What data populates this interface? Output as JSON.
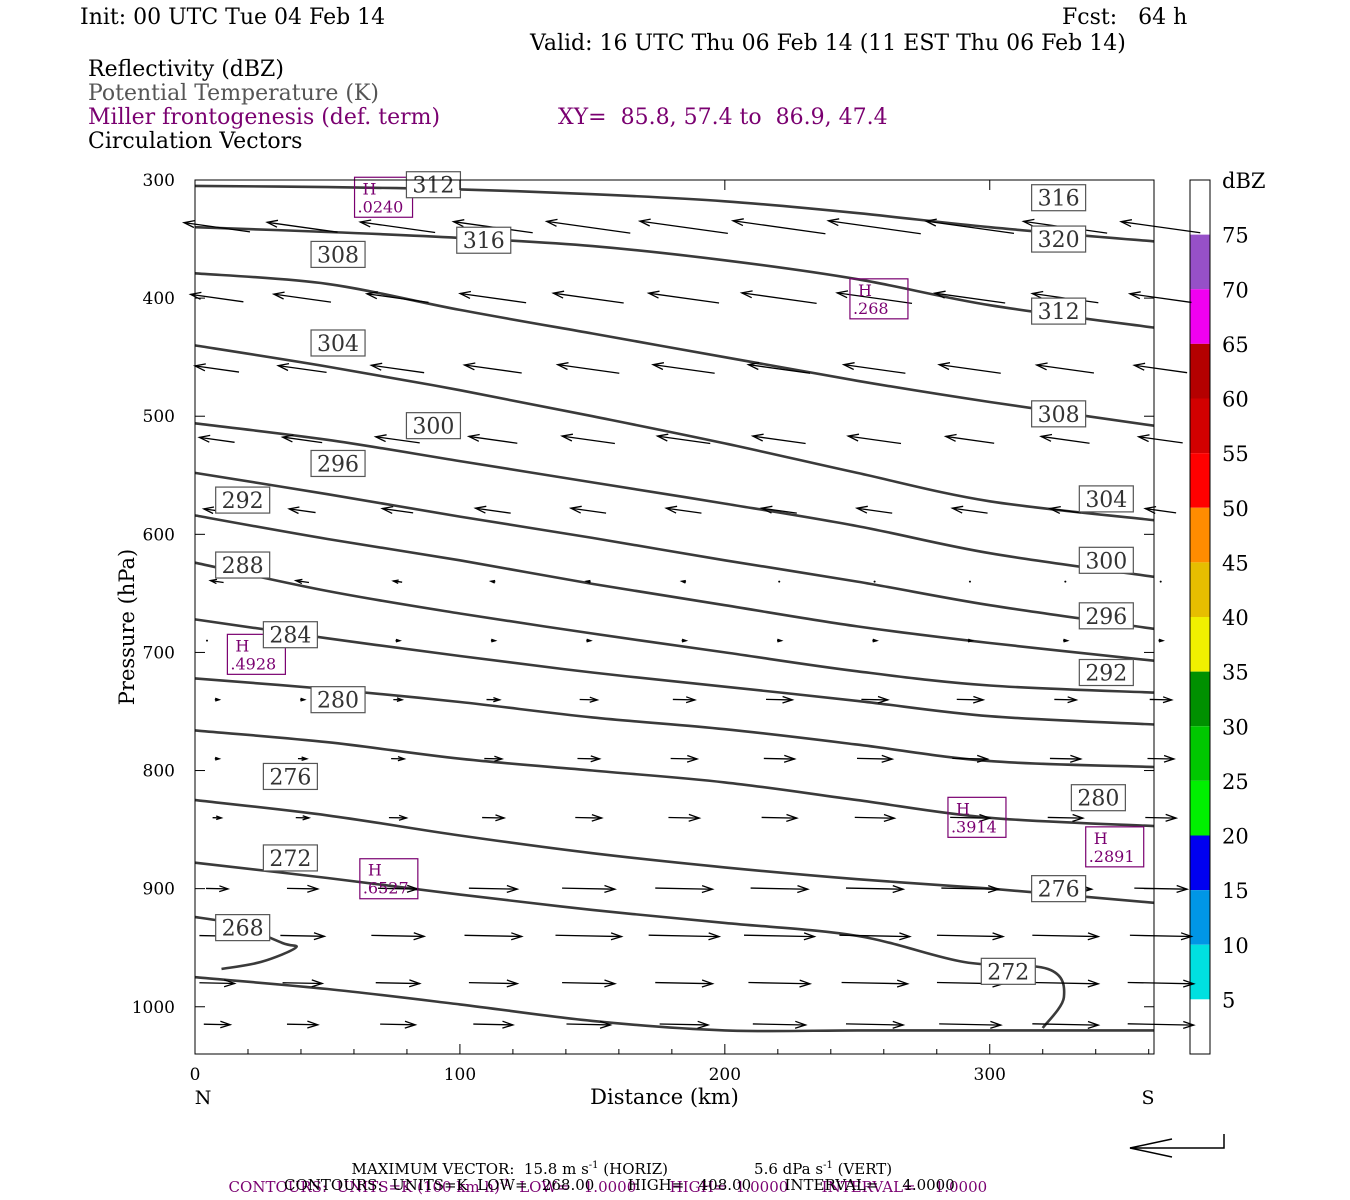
{
  "header": {
    "init": "Init: 00 UTC Tue 04 Feb 14",
    "fcst": "Fcst:   64 h",
    "valid": "Valid: 16 UTC Thu 06 Feb 14 (11 EST Thu 06 Feb 14)"
  },
  "legend": {
    "line1": "Reflectivity (dBZ)",
    "line2": "Potential Temperature (K)",
    "line3": "Miller frontogenesis (def. term)",
    "xy": "XY=  85.8, 57.4 to  86.9, 47.4",
    "line4": "Circulation Vectors"
  },
  "footer": {
    "maxvec": "MAXIMUM VECTOR:  15.8 m s",
    "maxvec_h": " (HORIZ)",
    "maxvec_v": "5.6 dPa s",
    "maxvec_v2": " (VERT)",
    "sup": "-1",
    "contour_purple_a": "CONTOURS:  UNITS=K (100 km h)",
    "contour_purple_b": "  LOW=   1.0000       HIGH=  1.0000       INTERVAL=    1.0000",
    "contour_black": "CONTOURS:  UNITS=K  LOW=   268.00       HIGH=   408.00       INTERVAL=     4.0000"
  },
  "colors": {
    "theta": "#3a3a3a",
    "frontogenesis": "#7a0070",
    "vectors": "#000000"
  },
  "chart_data": {
    "type": "cross-section",
    "xlabel": "Distance (km)",
    "ylabel": "Pressure (hPa)",
    "x_end_labels": [
      "N",
      "S"
    ],
    "xlim": [
      0,
      362
    ],
    "ylim": [
      1040,
      300
    ],
    "xticks": [
      0,
      100,
      200,
      300
    ],
    "yticks": [
      300,
      400,
      500,
      600,
      700,
      800,
      900,
      1000
    ],
    "colorbar": {
      "title": "dBZ",
      "labels": [
        5,
        10,
        15,
        20,
        25,
        30,
        35,
        40,
        45,
        50,
        55,
        60,
        65,
        70,
        75
      ],
      "colors": [
        "#ffffff",
        "#00e0e0",
        "#0096e6",
        "#0000f0",
        "#00f000",
        "#00c800",
        "#009000",
        "#f0f000",
        "#e6be00",
        "#ff8c00",
        "#ff0000",
        "#d20000",
        "#b40000",
        "#f000f0",
        "#9650c8",
        "#ffffff"
      ]
    },
    "theta_contours": [
      {
        "label": "268",
        "x": [
          0,
          15,
          33,
          38,
          25,
          10
        ],
        "p": [
          924,
          930,
          946,
          950,
          962,
          968
        ],
        "labels_at": [
          [
            18,
            933
          ]
        ]
      },
      {
        "label": "272",
        "x": [
          0,
          50,
          100,
          150,
          200,
          250,
          290,
          322,
          328,
          320
        ],
        "p": [
          878,
          891,
          905,
          918,
          929,
          940,
          962,
          968,
          992,
          1018
        ],
        "labels_at": [
          [
            36,
            874
          ],
          [
            307,
            970
          ]
        ]
      },
      {
        "label": "276",
        "x": [
          0,
          50,
          100,
          150,
          200,
          250,
          300,
          362
        ],
        "p": [
          825,
          838,
          855,
          870,
          882,
          892,
          900,
          912
        ],
        "labels_at": [
          [
            36,
            805
          ],
          [
            326,
            900
          ]
        ]
      },
      {
        "label": "280",
        "x": [
          0,
          50,
          100,
          150,
          200,
          250,
          300,
          362
        ],
        "p": [
          766,
          776,
          790,
          800,
          810,
          825,
          840,
          847
        ],
        "labels_at": [
          [
            54,
            740
          ],
          [
            341,
            823
          ]
        ]
      },
      {
        "label": "284",
        "x": [
          0,
          50,
          100,
          150,
          200,
          250,
          300,
          362
        ],
        "p": [
          722,
          731,
          742,
          755,
          765,
          778,
          792,
          797
        ],
        "labels_at": [
          [
            36,
            685
          ]
        ]
      },
      {
        "label": "288",
        "x": [
          0,
          50,
          100,
          150,
          200,
          250,
          300,
          362
        ],
        "p": [
          672,
          688,
          703,
          717,
          729,
          741,
          754,
          761
        ],
        "labels_at": [
          [
            18,
            626
          ]
        ]
      },
      {
        "label": "292",
        "x": [
          0,
          50,
          100,
          150,
          200,
          250,
          300,
          362
        ],
        "p": [
          624,
          648,
          667,
          684,
          700,
          716,
          728,
          734
        ],
        "labels_at": [
          [
            18,
            571
          ],
          [
            344,
            717
          ]
        ]
      },
      {
        "label": "296",
        "x": [
          0,
          50,
          100,
          150,
          200,
          250,
          300,
          362
        ],
        "p": [
          584,
          604,
          622,
          642,
          660,
          678,
          692,
          707
        ],
        "labels_at": [
          [
            54,
            540
          ],
          [
            344,
            669
          ]
        ]
      },
      {
        "label": "300",
        "x": [
          0,
          50,
          100,
          150,
          200,
          250,
          300,
          362
        ],
        "p": [
          548,
          566,
          585,
          603,
          622,
          640,
          660,
          680
        ],
        "labels_at": [
          [
            90,
            508
          ],
          [
            344,
            622
          ]
        ]
      },
      {
        "label": "304",
        "x": [
          0,
          50,
          100,
          150,
          200,
          250,
          300,
          362
        ],
        "p": [
          506,
          520,
          538,
          556,
          574,
          593,
          616,
          636
        ],
        "labels_at": [
          [
            54,
            438
          ],
          [
            344,
            570
          ]
        ]
      },
      {
        "label": "308",
        "x": [
          0,
          50,
          100,
          150,
          200,
          250,
          300,
          362
        ],
        "p": [
          440,
          458,
          478,
          500,
          523,
          548,
          572,
          588
        ],
        "labels_at": [
          [
            54,
            363
          ],
          [
            326,
            498
          ]
        ]
      },
      {
        "label": "312",
        "x": [
          0,
          50,
          100,
          150,
          200,
          250,
          300,
          362
        ],
        "p": [
          379,
          388,
          410,
          430,
          450,
          470,
          488,
          508
        ],
        "labels_at": [
          [
            90,
            304
          ],
          [
            326,
            411
          ]
        ]
      },
      {
        "label": "316",
        "x": [
          0,
          50,
          100,
          150,
          200,
          250,
          300,
          362
        ],
        "p": [
          340,
          344,
          349,
          356,
          368,
          384,
          406,
          425
        ],
        "labels_at": [
          [
            109,
            351
          ],
          [
            326,
            315
          ]
        ]
      },
      {
        "label": "320",
        "x": [
          0,
          50,
          100,
          150,
          200,
          250,
          300,
          362
        ],
        "p": [
          305,
          306,
          308,
          312,
          318,
          328,
          340,
          352
        ],
        "labels_at": [
          [
            326,
            350
          ]
        ]
      }
    ],
    "surface_line": {
      "x": [
        0,
        50,
        100,
        150,
        200,
        250,
        300,
        362
      ],
      "p": [
        975,
        985,
        998,
        1012,
        1020,
        1020,
        1020,
        1020
      ]
    },
    "frontogenesis_maxima": [
      {
        "label": "H",
        "value": ".0240",
        "x": 64,
        "p": 318
      },
      {
        "label": "H",
        "value": ".268",
        "x": 251,
        "p": 404
      },
      {
        "label": "H",
        "value": ".4928",
        "x": 16,
        "p": 705
      },
      {
        "label": "H",
        "value": ".3914",
        "x": 288,
        "p": 843
      },
      {
        "label": "H",
        "value": ".6527",
        "x": 66,
        "p": 895
      },
      {
        "label": "H",
        "value": ".2891",
        "x": 340,
        "p": 868
      }
    ],
    "vectors": {
      "x": [
        0,
        36,
        72,
        108,
        144,
        180,
        216,
        252,
        288,
        324,
        360
      ],
      "p": [
        340,
        400,
        460,
        520,
        580,
        640,
        690,
        740,
        790,
        840,
        900,
        940,
        980,
        1015
      ],
      "u_by_row": [
        [
          -15,
          -16,
          -17,
          -18,
          -19,
          -20,
          -21,
          -21,
          -20,
          -19,
          -18
        ],
        [
          -12,
          -13,
          -14,
          -15,
          -16,
          -16,
          -17,
          -17,
          -16,
          -15,
          -14
        ],
        [
          -10,
          -11,
          -12,
          -13,
          -14,
          -14,
          -14,
          -14,
          -14,
          -13,
          -12
        ],
        [
          -8,
          -9,
          -10,
          -11,
          -12,
          -12,
          -12,
          -12,
          -11,
          -11,
          -10
        ],
        [
          -6,
          -6,
          -7,
          -8,
          -8,
          -8,
          -8,
          -8,
          -8,
          -7,
          -7
        ],
        [
          -3,
          -3,
          -2,
          -1,
          -1,
          -1,
          0,
          0,
          0,
          0,
          0
        ],
        [
          0,
          1,
          1,
          1,
          1,
          1,
          1,
          1,
          1,
          1,
          1
        ],
        [
          1,
          1,
          2,
          3,
          4,
          5,
          6,
          6,
          6,
          5,
          5
        ],
        [
          1,
          2,
          3,
          4,
          5,
          6,
          7,
          8,
          8,
          7,
          6
        ],
        [
          2,
          3,
          4,
          5,
          6,
          7,
          8,
          9,
          9,
          8,
          7
        ],
        [
          5,
          7,
          9,
          11,
          12,
          13,
          13,
          13,
          13,
          12,
          12
        ],
        [
          8,
          10,
          12,
          13,
          15,
          16,
          16,
          16,
          15,
          15,
          14
        ],
        [
          8,
          9,
          10,
          11,
          12,
          13,
          14,
          15,
          15,
          15,
          15
        ],
        [
          6,
          7,
          8,
          9,
          10,
          11,
          12,
          13,
          14,
          15,
          15
        ]
      ]
    }
  }
}
